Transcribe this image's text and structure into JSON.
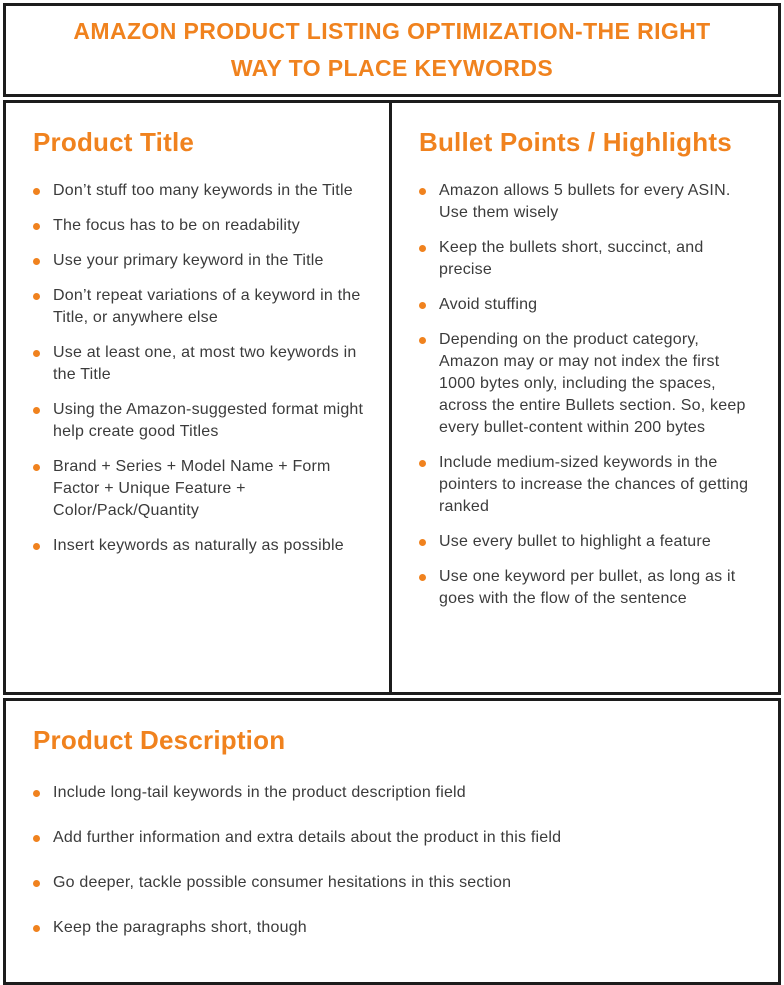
{
  "header": {
    "title": "AMAZON PRODUCT LISTING OPTIMIZATION-THE RIGHT WAY TO PLACE KEYWORDS"
  },
  "colors": {
    "accent_orange": "#F0821E",
    "body_text": "#3B3B3B",
    "border_black": "#1C1C1C",
    "background": "#FFFFFF"
  },
  "sections": {
    "product_title": {
      "heading": "Product Title",
      "bullets": [
        "Don’t stuff too many keywords in the Title",
        "The focus has to be on readability",
        "Use your primary keyword in the Title",
        "Don’t repeat variations of a keyword in the Title, or anywhere else",
        "Use at least one, at most two keywords in the Title",
        "Using the Amazon-suggested format might help create good Titles",
        "Brand + Series + Model Name + Form Factor + Unique Feature + Color/Pack/Quantity",
        "Insert keywords as naturally as possible"
      ]
    },
    "bullet_points": {
      "heading": "Bullet Points / Highlights",
      "bullets": [
        "Amazon allows 5 bullets for every ASIN. Use them wisely",
        "Keep the bullets short, succinct, and precise",
        "Avoid stuffing",
        "Depending on the product category, Amazon may or may not index the first 1000 bytes only, including the spaces, across the entire Bullets section. So, keep every bullet-content within 200 bytes",
        "Include medium-sized keywords in the pointers to increase the chances of getting ranked",
        "Use every bullet to highlight a feature",
        "Use one keyword per bullet, as long as it goes with the flow of the sentence"
      ]
    },
    "product_description": {
      "heading": "Product Description",
      "bullets": [
        "Include long-tail keywords in the product description field",
        "Add further information and extra details about the product in this field",
        "Go deeper, tackle possible consumer hesitations in this section",
        "Keep the paragraphs short, though"
      ]
    }
  }
}
